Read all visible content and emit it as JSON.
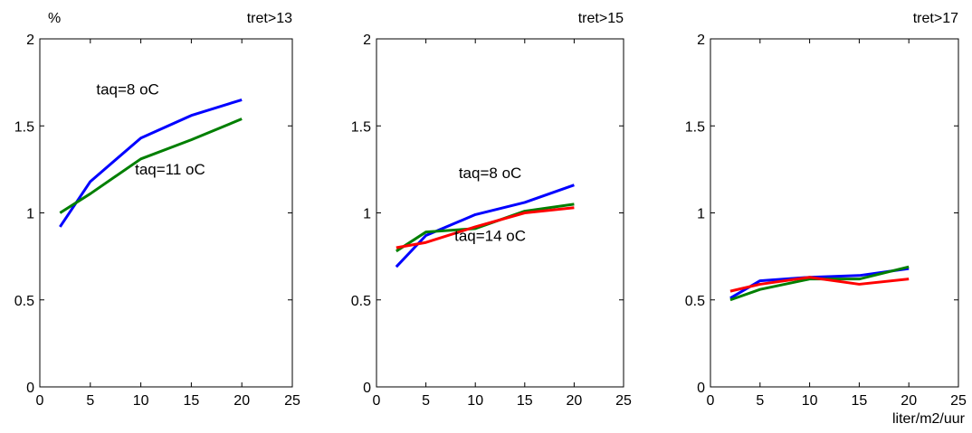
{
  "chart_data": [
    {
      "type": "line",
      "title": "tret>13",
      "ylabel": "%",
      "xlabel": "",
      "xlim": [
        0,
        25
      ],
      "ylim": [
        0,
        2
      ],
      "xticks": [
        0,
        5,
        10,
        15,
        20,
        25
      ],
      "xtick_labels": [
        "0",
        "5",
        "10",
        "15",
        "20",
        "25"
      ],
      "yticks": [
        0,
        0.5,
        1,
        1.5,
        2
      ],
      "ytick_labels": [
        "0",
        "0.5",
        "1",
        "1.5",
        "2"
      ],
      "grid": false,
      "series": [
        {
          "color": "#0000ff",
          "x": [
            2,
            5,
            10,
            15,
            20
          ],
          "y": [
            0.92,
            1.18,
            1.43,
            1.56,
            1.65
          ]
        },
        {
          "color": "#007f00",
          "x": [
            2,
            5,
            10,
            15,
            20
          ],
          "y": [
            1.0,
            1.11,
            1.31,
            1.42,
            1.54
          ]
        }
      ],
      "annotations": [
        {
          "text": "taq=8 oC",
          "x": 8.7,
          "y": 1.68
        },
        {
          "text": "taq=11 oC",
          "x": 12.9,
          "y": 1.22
        }
      ]
    },
    {
      "type": "line",
      "title": "tret>15",
      "ylabel": "",
      "xlabel": "",
      "xlim": [
        0,
        25
      ],
      "ylim": [
        0,
        2
      ],
      "xticks": [
        0,
        5,
        10,
        15,
        20,
        25
      ],
      "xtick_labels": [
        "0",
        "5",
        "10",
        "15",
        "20",
        "25"
      ],
      "yticks": [
        0,
        0.5,
        1,
        1.5,
        2
      ],
      "ytick_labels": [
        "0",
        "0.5",
        "1",
        "1.5",
        "2"
      ],
      "grid": false,
      "series": [
        {
          "color": "#0000ff",
          "x": [
            2,
            5,
            10,
            15,
            20
          ],
          "y": [
            0.69,
            0.87,
            0.99,
            1.06,
            1.16
          ]
        },
        {
          "color": "#007f00",
          "x": [
            2,
            5,
            10,
            15,
            20
          ],
          "y": [
            0.78,
            0.89,
            0.91,
            1.01,
            1.05
          ]
        },
        {
          "color": "#ff0000",
          "x": [
            2,
            5,
            10,
            15,
            20
          ],
          "y": [
            0.8,
            0.83,
            0.92,
            1.0,
            1.03
          ]
        }
      ],
      "annotations": [
        {
          "text": "taq=8 oC",
          "x": 11.5,
          "y": 1.2
        },
        {
          "text": "taq=14 oC",
          "x": 11.5,
          "y": 0.84
        }
      ]
    },
    {
      "type": "line",
      "title": "tret>17",
      "ylabel": "",
      "xlabel": "liter/m2/uur",
      "xlim": [
        0,
        25
      ],
      "ylim": [
        0,
        2
      ],
      "xticks": [
        0,
        5,
        10,
        15,
        20,
        25
      ],
      "xtick_labels": [
        "0",
        "5",
        "10",
        "15",
        "20",
        "25"
      ],
      "yticks": [
        0,
        0.5,
        1,
        1.5,
        2
      ],
      "ytick_labels": [
        "0",
        "0.5",
        "1",
        "1.5",
        "2"
      ],
      "grid": false,
      "series": [
        {
          "color": "#0000ff",
          "x": [
            2,
            5,
            10,
            15,
            20
          ],
          "y": [
            0.51,
            0.61,
            0.63,
            0.64,
            0.68
          ]
        },
        {
          "color": "#007f00",
          "x": [
            2,
            5,
            10,
            15,
            20
          ],
          "y": [
            0.5,
            0.56,
            0.62,
            0.62,
            0.69
          ]
        },
        {
          "color": "#ff0000",
          "x": [
            2,
            5,
            10,
            15,
            20
          ],
          "y": [
            0.55,
            0.59,
            0.63,
            0.59,
            0.62
          ]
        }
      ],
      "annotations": []
    }
  ]
}
